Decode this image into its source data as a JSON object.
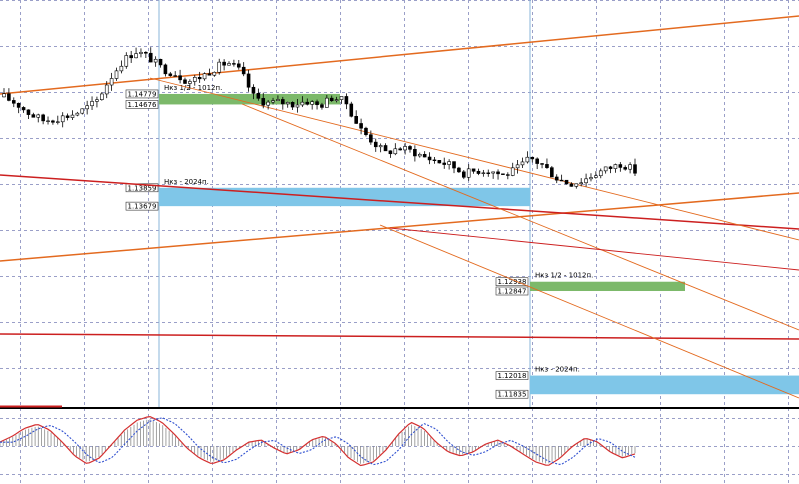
{
  "chart_data": {
    "type": "candlestick",
    "title": "",
    "xlabel": "",
    "ylabel": "",
    "grid": true,
    "ylim": [
      1.117,
      1.157
    ],
    "zones": [
      {
        "name": "zone-1",
        "label": "Нкз 1/2 - 1012п.",
        "top_label": "1.14779",
        "bottom_label": "1.14676",
        "top": 1.14779,
        "bottom": 1.14676,
        "color": "#7cb96a"
      },
      {
        "name": "zone-2",
        "label": "Нкз - 2024п.",
        "top_label": "1.13859",
        "bottom_label": "1.13679",
        "top": 1.13859,
        "bottom": 1.13679,
        "color": "#7fc6e8"
      },
      {
        "name": "zone-3",
        "label": "Нкз 1/2 - 1012п.",
        "top_label": "1.12938",
        "bottom_label": "1.12847",
        "top": 1.12938,
        "bottom": 1.12847,
        "color": "#7cb96a"
      },
      {
        "name": "zone-4",
        "label": "Нкз - 2024п.",
        "top_label": "1.12018",
        "bottom_label": "1.11835",
        "top": 1.12018,
        "bottom": 1.11835,
        "color": "#7fc6e8"
      }
    ],
    "price_path": [
      1.1475,
      1.1468,
      1.1458,
      1.1452,
      1.1454,
      1.1457,
      1.1462,
      1.147,
      1.1492,
      1.151,
      1.152,
      1.1514,
      1.1503,
      1.1498,
      1.149,
      1.1495,
      1.1503,
      1.1509,
      1.15,
      1.1475,
      1.1469,
      1.147,
      1.1468,
      1.1471,
      1.1466,
      1.1475,
      1.147,
      1.1445,
      1.1432,
      1.142,
      1.1425,
      1.1422,
      1.1416,
      1.1412,
      1.1408,
      1.14,
      1.1403,
      1.1403,
      1.1398,
      1.1404,
      1.1415,
      1.1408,
      1.1396,
      1.139,
      1.1393,
      1.14,
      1.1405,
      1.141,
      1.1402
    ],
    "oscillator": [
      0.2,
      0.5,
      0.9,
      1.1,
      0.8,
      0.2,
      -0.5,
      -0.9,
      -0.6,
      0.1,
      0.8,
      1.3,
      1.5,
      1.2,
      0.6,
      -0.1,
      -0.6,
      -0.9,
      -0.7,
      -0.2,
      0.2,
      0.3,
      -0.1,
      -0.4,
      -0.2,
      0.3,
      0.5,
      0.1,
      -0.6,
      -1.0,
      -0.8,
      -0.2,
      0.6,
      1.2,
      0.9,
      0.2,
      -0.3,
      -0.5,
      -0.3,
      0.1,
      0.3,
      0.0,
      -0.4,
      -0.8,
      -1.0,
      -0.6,
      0.0,
      0.4,
      0.2,
      -0.3,
      -0.6,
      -0.4
    ]
  },
  "colors": {
    "grid": "#9a9fc8",
    "candle_up": "#ffffff",
    "candle_down": "#000000",
    "trend_orange": "#e36a1f",
    "trend_red": "#cc1f1f",
    "osc_red": "#d43030",
    "osc_blue": "#3050d0"
  }
}
